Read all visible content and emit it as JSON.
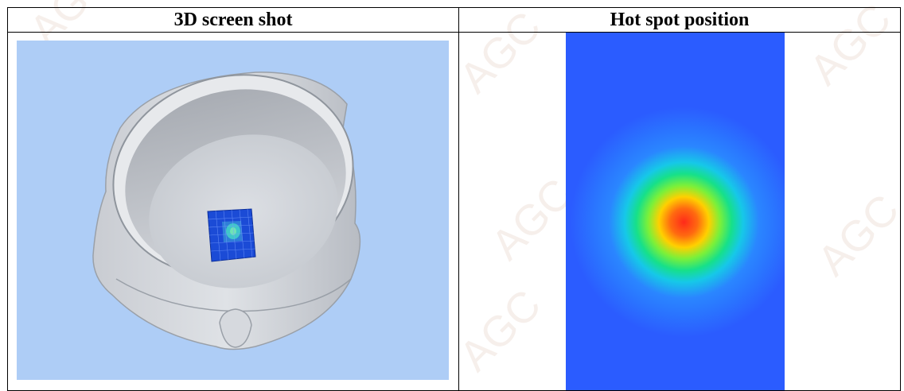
{
  "table": {
    "headers": {
      "left": "3D screen shot",
      "right": "Hot spot position"
    }
  },
  "watermark": {
    "text": "AGC"
  },
  "colors": {
    "panel_background": "#aecdf6",
    "heat_low": "#2b5cff",
    "heat_high": "#ff2a1a"
  }
}
